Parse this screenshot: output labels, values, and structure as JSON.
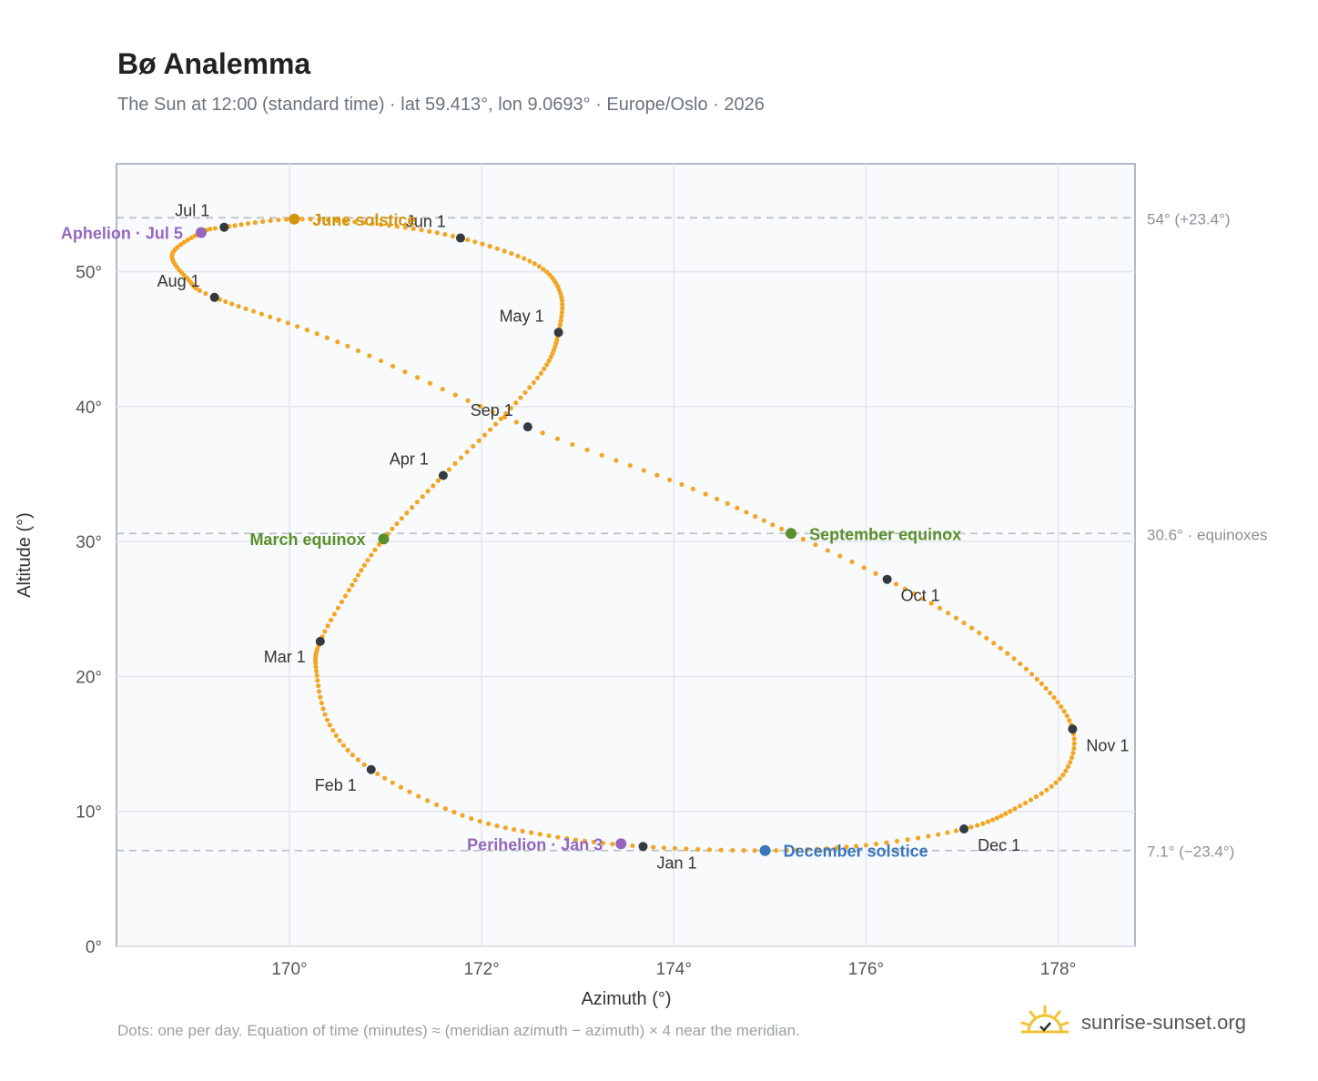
{
  "header": {
    "title": "Bø Analemma",
    "subtitle": "The Sun at 12:00 (standard time) · lat 59.413°, lon 9.0693° · Europe/Oslo · 2026"
  },
  "footer": {
    "note": "Dots: one per day. Equation of time (minutes) ≈ (meridian azimuth − azimuth) × 4 near the meridian."
  },
  "brand": {
    "name": "sunrise-sunset.org",
    "icon": "sun-logo-icon",
    "color": "#f2c230"
  },
  "chart_data": {
    "type": "scatter",
    "xlabel": "Azimuth (°)",
    "ylabel": "Altitude (°)",
    "xlim": [
      168.2,
      178.8
    ],
    "ylim": [
      0,
      58
    ],
    "xticks": [
      170,
      172,
      174,
      176,
      178
    ],
    "xtick_labels": [
      "170°",
      "172°",
      "174°",
      "176°",
      "178°"
    ],
    "yticks": [
      0,
      10,
      20,
      30,
      40,
      50
    ],
    "ytick_labels": [
      "0°",
      "10°",
      "20°",
      "30°",
      "40°",
      "50°"
    ],
    "grid": true,
    "colors": {
      "dots": "#f3a623",
      "month_marker": "#333a40",
      "equinox": "#5a8f2c",
      "june_solstice": "#d4950c",
      "december_solstice": "#3a77bd",
      "apsis": "#9467bd",
      "reference_line": "#bcc2c8",
      "plot_bg": "#f8fafc",
      "plot_border": "#9aa4b2"
    },
    "reference_lines": [
      {
        "y": 54.0,
        "label": "54° (+23.4°)"
      },
      {
        "y": 30.6,
        "label": "30.6° · equinoxes"
      },
      {
        "y": 7.1,
        "label": "7.1° (−23.4°)"
      }
    ],
    "path_keypoints": [
      {
        "doy": 0,
        "x": 173.68,
        "y": 7.4
      },
      {
        "doy": 10,
        "x": 172.7,
        "y": 8.2
      },
      {
        "doy": 20,
        "x": 171.8,
        "y": 9.7
      },
      {
        "doy": 31,
        "x": 170.85,
        "y": 13.1
      },
      {
        "doy": 40,
        "x": 170.42,
        "y": 16.4
      },
      {
        "doy": 50,
        "x": 170.28,
        "y": 20.4
      },
      {
        "doy": 59,
        "x": 170.32,
        "y": 22.6
      },
      {
        "doy": 68,
        "x": 170.62,
        "y": 26.4
      },
      {
        "doy": 78,
        "x": 170.98,
        "y": 30.2
      },
      {
        "doy": 90,
        "x": 171.6,
        "y": 34.9
      },
      {
        "doy": 100,
        "x": 172.2,
        "y": 39.1
      },
      {
        "doy": 110,
        "x": 172.65,
        "y": 42.8
      },
      {
        "doy": 120,
        "x": 172.8,
        "y": 45.5
      },
      {
        "doy": 130,
        "x": 172.82,
        "y": 48.4
      },
      {
        "doy": 140,
        "x": 172.55,
        "y": 50.6
      },
      {
        "doy": 151,
        "x": 171.78,
        "y": 52.5
      },
      {
        "doy": 161,
        "x": 170.95,
        "y": 53.5
      },
      {
        "doy": 171,
        "x": 170.05,
        "y": 53.9
      },
      {
        "doy": 181,
        "x": 169.32,
        "y": 53.3
      },
      {
        "doy": 185,
        "x": 169.08,
        "y": 52.9
      },
      {
        "doy": 195,
        "x": 168.78,
        "y": 51.3
      },
      {
        "doy": 205,
        "x": 168.95,
        "y": 49.4
      },
      {
        "doy": 212,
        "x": 169.22,
        "y": 48.1
      },
      {
        "doy": 227,
        "x": 170.5,
        "y": 44.8
      },
      {
        "doy": 243,
        "x": 172.48,
        "y": 38.5
      },
      {
        "doy": 255,
        "x": 174.2,
        "y": 33.9
      },
      {
        "doy": 265,
        "x": 175.22,
        "y": 30.6
      },
      {
        "doy": 273,
        "x": 176.22,
        "y": 27.2
      },
      {
        "doy": 283,
        "x": 177.1,
        "y": 23.6
      },
      {
        "doy": 293,
        "x": 177.78,
        "y": 19.8
      },
      {
        "doy": 304,
        "x": 178.15,
        "y": 16.1
      },
      {
        "doy": 314,
        "x": 178.05,
        "y": 12.7
      },
      {
        "doy": 324,
        "x": 177.55,
        "y": 10.2
      },
      {
        "doy": 334,
        "x": 177.02,
        "y": 8.7
      },
      {
        "doy": 344,
        "x": 176.0,
        "y": 7.5
      },
      {
        "doy": 354,
        "x": 174.95,
        "y": 7.1
      },
      {
        "doy": 365,
        "x": 173.68,
        "y": 7.4
      }
    ],
    "month_markers": [
      {
        "label": "Jan 1",
        "x": 173.68,
        "y": 7.4,
        "pos": "below-right"
      },
      {
        "label": "Feb 1",
        "x": 170.85,
        "y": 13.1,
        "pos": "below-left"
      },
      {
        "label": "Mar 1",
        "x": 170.32,
        "y": 22.6,
        "pos": "below-left"
      },
      {
        "label": "Apr 1",
        "x": 171.6,
        "y": 34.9,
        "pos": "above-left"
      },
      {
        "label": "May 1",
        "x": 172.8,
        "y": 45.5,
        "pos": "above-left"
      },
      {
        "label": "Jun 1",
        "x": 171.78,
        "y": 52.5,
        "pos": "above-left"
      },
      {
        "label": "Jul 1",
        "x": 169.32,
        "y": 53.3,
        "pos": "above-left"
      },
      {
        "label": "Aug 1",
        "x": 169.22,
        "y": 48.1,
        "pos": "above-left"
      },
      {
        "label": "Sep 1",
        "x": 172.48,
        "y": 38.5,
        "pos": "above-left"
      },
      {
        "label": "Oct 1",
        "x": 176.22,
        "y": 27.2,
        "pos": "below-right"
      },
      {
        "label": "Nov 1",
        "x": 178.15,
        "y": 16.1,
        "pos": "below-right"
      },
      {
        "label": "Dec 1",
        "x": 177.02,
        "y": 8.7,
        "pos": "below-right"
      }
    ],
    "events": [
      {
        "label": "March equinox",
        "x": 170.98,
        "y": 30.2,
        "kind": "equinox",
        "pos": "left"
      },
      {
        "label": "June solstice",
        "x": 170.05,
        "y": 53.9,
        "kind": "june_solstice",
        "pos": "right"
      },
      {
        "label": "September equinox",
        "x": 175.22,
        "y": 30.6,
        "kind": "equinox",
        "pos": "right"
      },
      {
        "label": "December solstice",
        "x": 174.95,
        "y": 7.1,
        "kind": "december_solstice",
        "pos": "right"
      },
      {
        "label": "Aphelion · Jul 5",
        "x": 169.08,
        "y": 52.9,
        "kind": "apsis",
        "pos": "left"
      },
      {
        "label": "Perihelion · Jan 3",
        "x": 173.45,
        "y": 7.6,
        "kind": "apsis",
        "pos": "left"
      }
    ]
  }
}
